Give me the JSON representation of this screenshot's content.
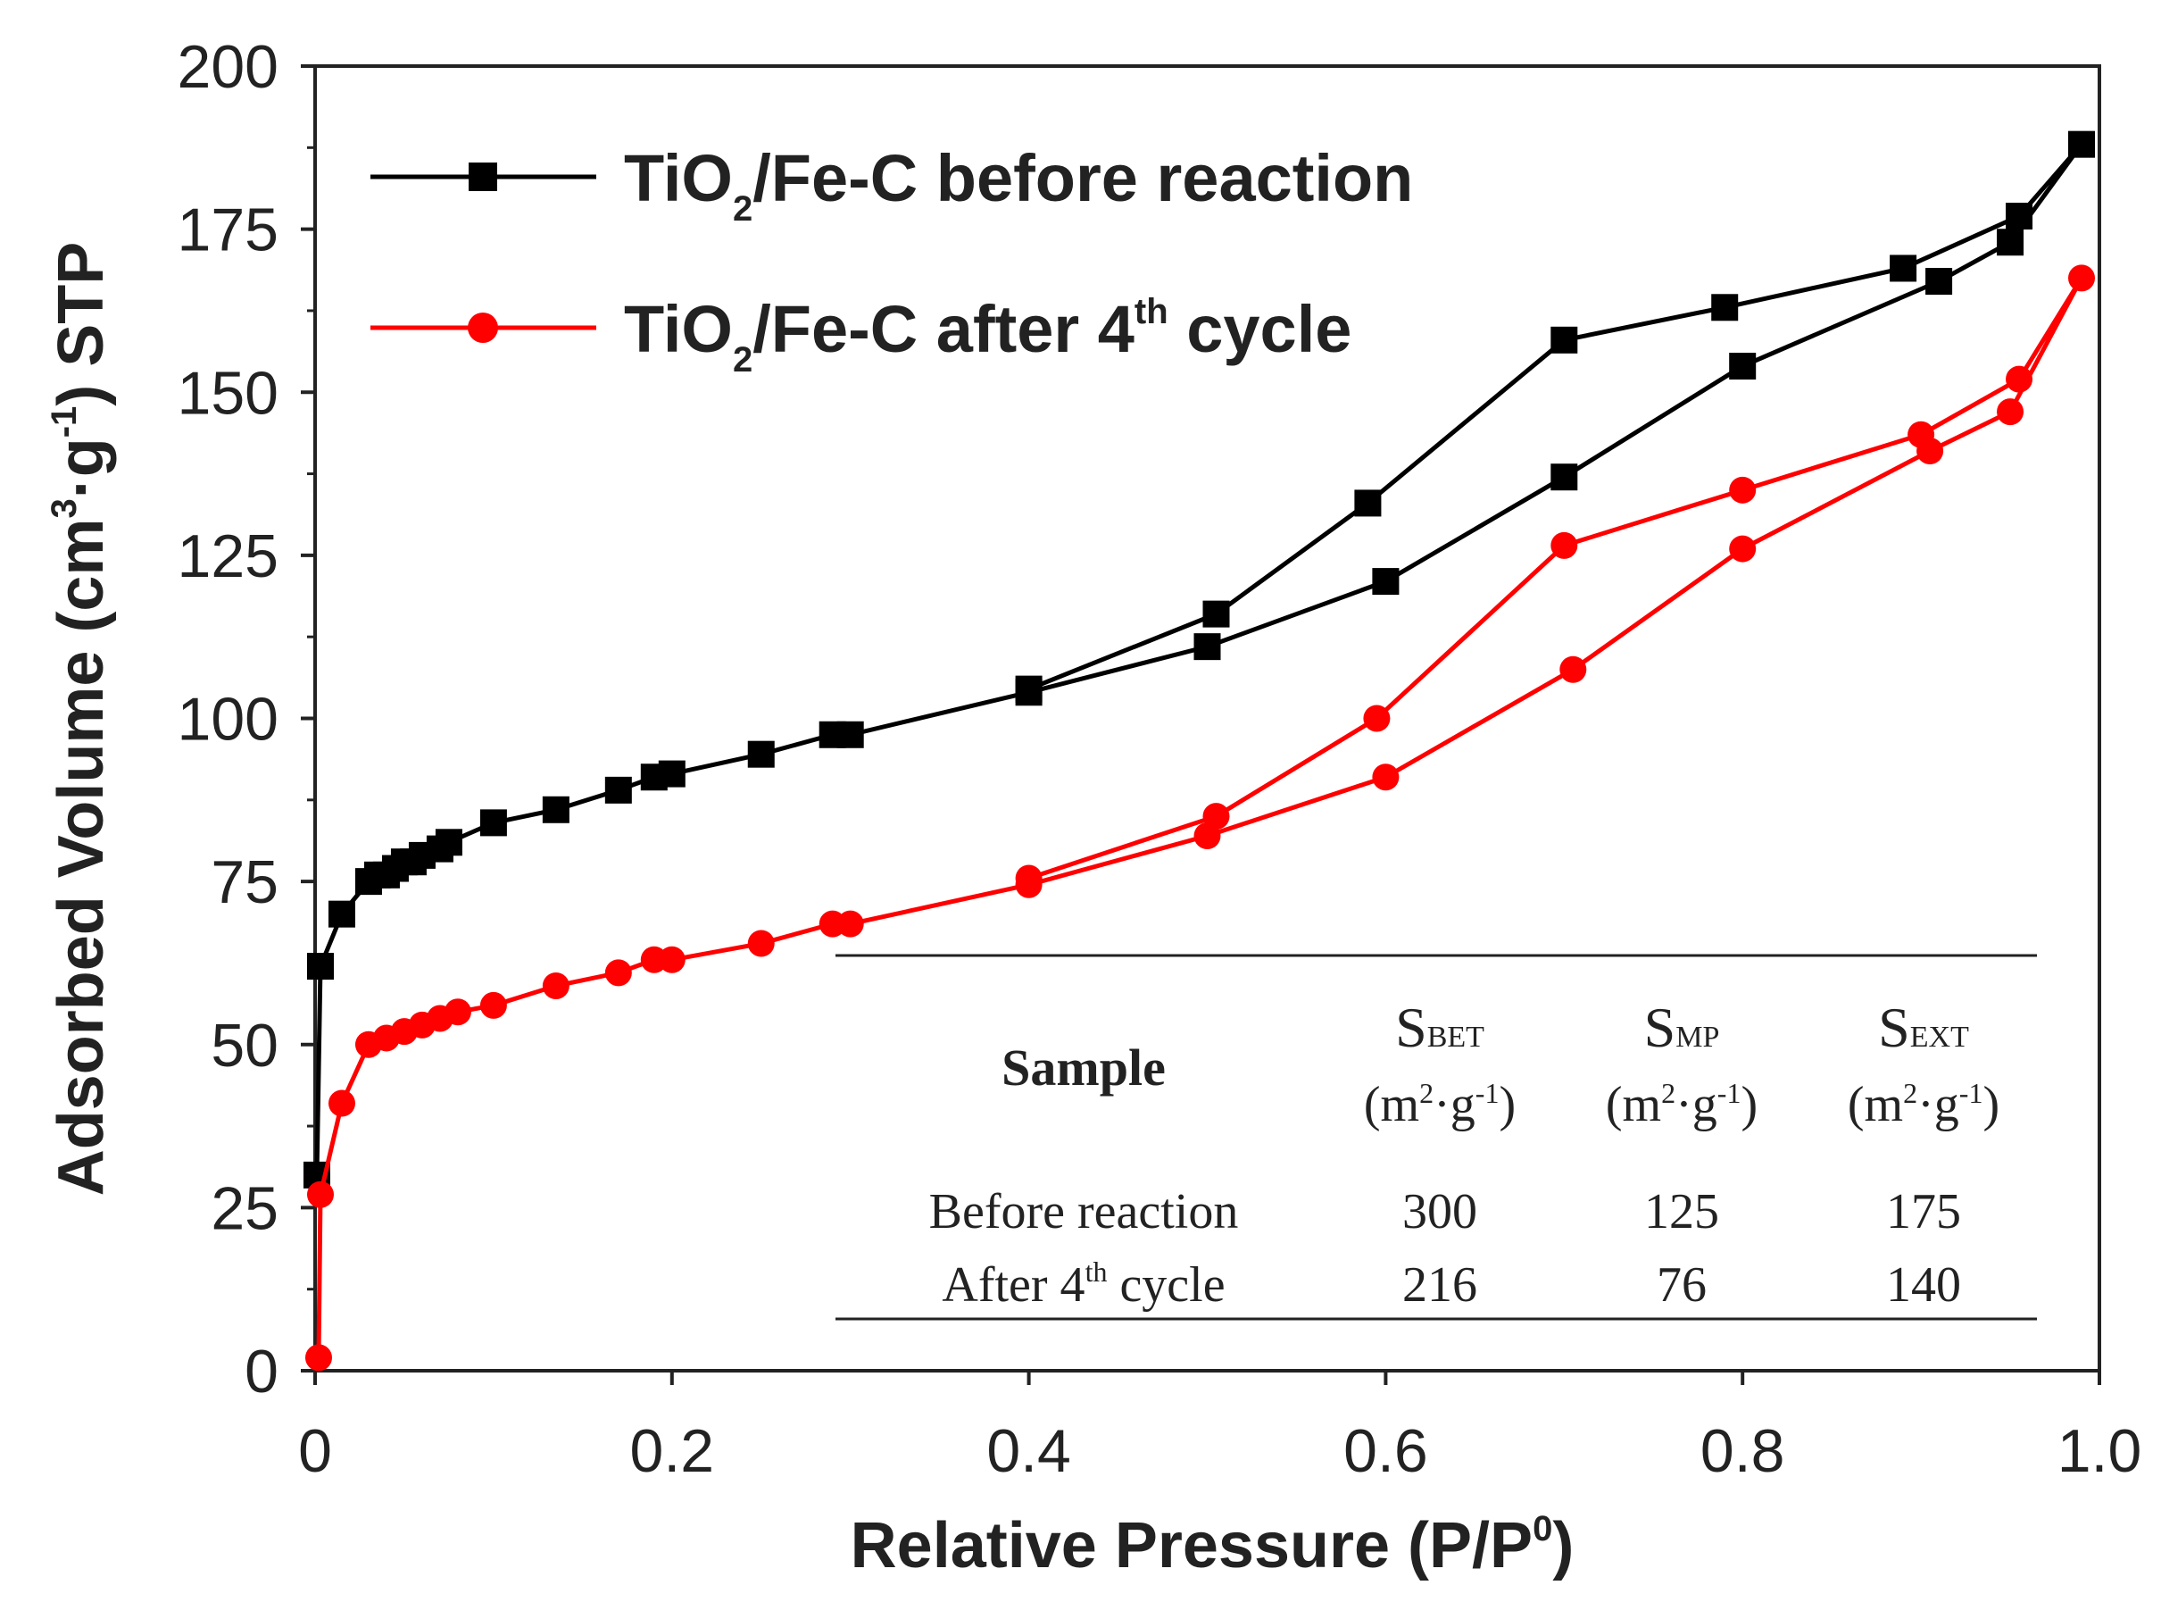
{
  "chart_data": {
    "type": "line",
    "xlabel": {
      "main": "Relative Pressure (P/P",
      "sup": "0",
      "end": ")"
    },
    "ylabel": {
      "a": "Adsorbed Volume (cm",
      "sup1": "3",
      "b": "·g",
      "sup2": "-1",
      "c": ") STP"
    },
    "xlim": [
      0,
      1.0
    ],
    "ylim": [
      0,
      200
    ],
    "xticks": [
      "0",
      "0.2",
      "0.4",
      "0.6",
      "0.8",
      "1.0"
    ],
    "yticks": [
      "0",
      "25",
      "50",
      "75",
      "100",
      "125",
      "150",
      "175",
      "200"
    ],
    "legend_position": "top-left",
    "series": [
      {
        "name": "TiO2/Fe-C before reaction",
        "label": {
          "a": "TiO",
          "sub": "2",
          "b": "/Fe-C before reaction"
        },
        "color": "#000000",
        "marker": "square",
        "points": [
          [
            0.001,
            30
          ],
          [
            0.003,
            62
          ],
          [
            0.015,
            70
          ],
          [
            0.03,
            75
          ],
          [
            0.035,
            76
          ],
          [
            0.04,
            76
          ],
          [
            0.045,
            77
          ],
          [
            0.05,
            78
          ],
          [
            0.055,
            78
          ],
          [
            0.06,
            79
          ],
          [
            0.07,
            80
          ],
          [
            0.075,
            81
          ],
          [
            0.1,
            84
          ],
          [
            0.135,
            86
          ],
          [
            0.17,
            89
          ],
          [
            0.19,
            91
          ],
          [
            0.2,
            91.5
          ],
          [
            0.25,
            94.5
          ],
          [
            0.29,
            97.5
          ],
          [
            0.3,
            97.5
          ],
          [
            0.4,
            104
          ],
          [
            0.5,
            111
          ],
          [
            0.6,
            121
          ],
          [
            0.7,
            137
          ],
          [
            0.8,
            154
          ],
          [
            0.91,
            167
          ],
          [
            0.95,
            173
          ],
          [
            0.99,
            188
          ],
          [
            0.955,
            177
          ],
          [
            0.89,
            169
          ],
          [
            0.79,
            163
          ],
          [
            0.7,
            158
          ],
          [
            0.59,
            133
          ],
          [
            0.505,
            116
          ],
          [
            0.4,
            104.5
          ]
        ]
      },
      {
        "name": "TiO2/Fe-C after 4th cycle",
        "label": {
          "a": "TiO",
          "sub": "2",
          "b": "/Fe-C after 4",
          "sup": "th",
          "c": " cycle"
        },
        "color": "#ff0000",
        "marker": "circle",
        "points": [
          [
            0.002,
            2
          ],
          [
            0.003,
            27
          ],
          [
            0.015,
            41
          ],
          [
            0.03,
            50
          ],
          [
            0.04,
            51
          ],
          [
            0.05,
            52
          ],
          [
            0.06,
            53
          ],
          [
            0.07,
            54
          ],
          [
            0.08,
            55
          ],
          [
            0.1,
            56
          ],
          [
            0.135,
            59
          ],
          [
            0.17,
            61
          ],
          [
            0.19,
            63
          ],
          [
            0.2,
            63
          ],
          [
            0.25,
            65.5
          ],
          [
            0.29,
            68.5
          ],
          [
            0.3,
            68.5
          ],
          [
            0.4,
            74.5
          ],
          [
            0.5,
            82
          ],
          [
            0.6,
            91
          ],
          [
            0.705,
            107.5
          ],
          [
            0.8,
            126
          ],
          [
            0.905,
            141
          ],
          [
            0.95,
            147
          ],
          [
            0.99,
            167.5
          ],
          [
            0.955,
            152
          ],
          [
            0.9,
            143.5
          ],
          [
            0.8,
            135
          ],
          [
            0.7,
            126.5
          ],
          [
            0.595,
            100
          ],
          [
            0.505,
            85
          ],
          [
            0.4,
            75.5
          ]
        ]
      }
    ],
    "inset_table": {
      "headers": [
        {
          "main": "Sample"
        },
        {
          "s": "S",
          "sub": "BET",
          "unit_a": "(m",
          "unit_sup": "2",
          "unit_b": "·g",
          "unit_sup2": "-1",
          "unit_c": ")"
        },
        {
          "s": "S",
          "sub": "MP",
          "unit_a": "(m",
          "unit_sup": "2",
          "unit_b": "·g",
          "unit_sup2": "-1",
          "unit_c": ")"
        },
        {
          "s": "S",
          "sub": "EXT",
          "unit_a": "(m",
          "unit_sup": "2",
          "unit_b": "·g",
          "unit_sup2": "-1",
          "unit_c": ")"
        }
      ],
      "rows": [
        {
          "sample": {
            "a": "Before reaction"
          },
          "values": [
            "300",
            "125",
            "175"
          ]
        },
        {
          "sample": {
            "a": "After 4",
            "sup": "th",
            "b": " cycle"
          },
          "values": [
            "216",
            "76",
            "140"
          ]
        }
      ]
    }
  }
}
